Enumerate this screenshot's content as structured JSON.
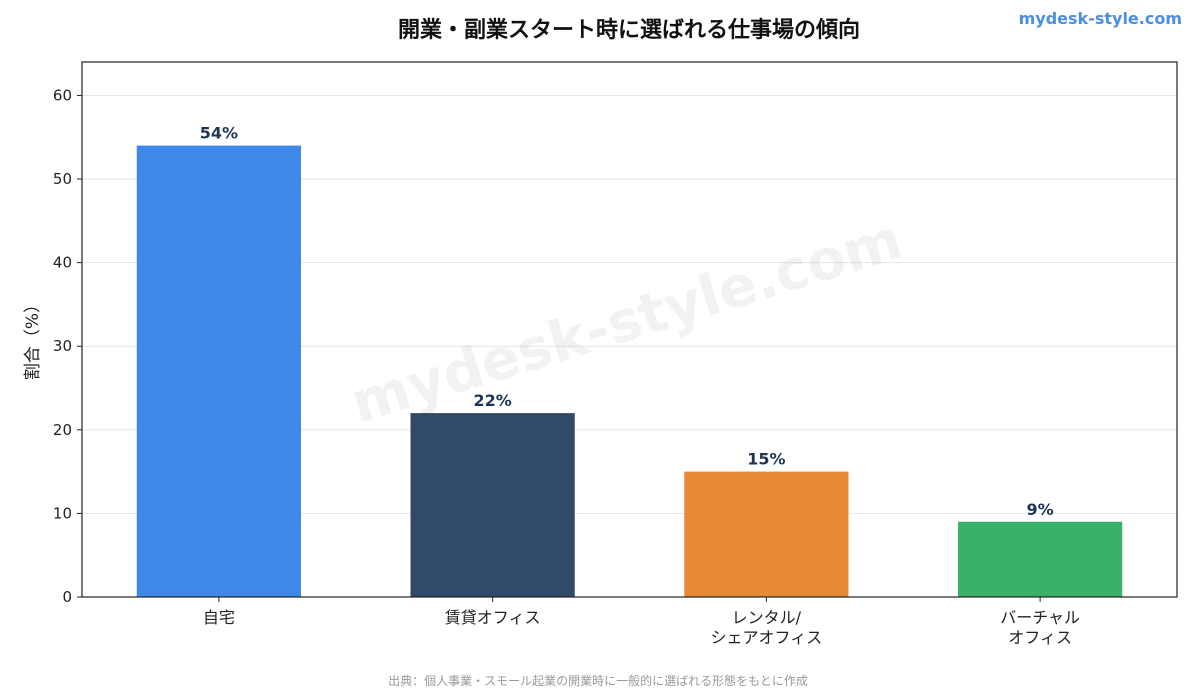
{
  "brand": {
    "text": "mydesk-style.com",
    "color": "#4a8fe2"
  },
  "watermark": "mydesk-style.com",
  "source": "出典：個人事業・スモール起業の開業時に一般的に選ばれる形態をもとに作成",
  "chart_data": {
    "type": "bar",
    "title": "開業・副業スタート時に選ばれる仕事場の傾向",
    "xlabel": "",
    "ylabel": "割合（%）",
    "categories": [
      [
        "自宅"
      ],
      [
        "賃貸オフィス"
      ],
      [
        "レンタル/",
        "シェアオフィス"
      ],
      [
        "バーチャル",
        "オフィス"
      ]
    ],
    "values": [
      54,
      22,
      15,
      9
    ],
    "data_labels": [
      "54%",
      "22%",
      "15%",
      "9%"
    ],
    "colors": [
      "#3e88ea",
      "#314a6a",
      "#e88a35",
      "#38b26b"
    ],
    "ylim": [
      0,
      64
    ],
    "yticks": [
      0,
      10,
      20,
      30,
      40,
      50,
      60
    ],
    "grid": true,
    "legend": "none"
  }
}
